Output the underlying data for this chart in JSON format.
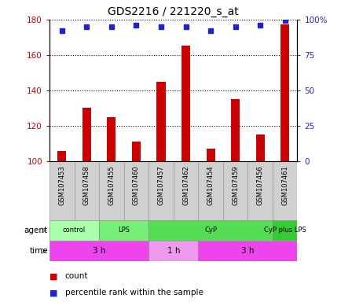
{
  "title": "GDS2216 / 221220_s_at",
  "samples": [
    "GSM107453",
    "GSM107458",
    "GSM107455",
    "GSM107460",
    "GSM107457",
    "GSM107462",
    "GSM107454",
    "GSM107459",
    "GSM107456",
    "GSM107461"
  ],
  "counts": [
    106,
    130,
    125,
    111,
    145,
    165,
    107,
    135,
    115,
    177
  ],
  "percentiles": [
    92,
    95,
    95,
    96,
    95,
    95,
    92,
    95,
    96,
    99
  ],
  "ylim_left": [
    100,
    180
  ],
  "ylim_right": [
    0,
    100
  ],
  "yticks_left": [
    100,
    120,
    140,
    160,
    180
  ],
  "yticks_right": [
    0,
    25,
    50,
    75,
    100
  ],
  "ytick_labels_right": [
    "0",
    "25",
    "50",
    "75",
    "100%"
  ],
  "bar_color": "#cc0000",
  "dot_color": "#2222cc",
  "agent_groups": [
    {
      "label": "control",
      "start": 0,
      "end": 2,
      "color": "#aaffaa"
    },
    {
      "label": "LPS",
      "start": 2,
      "end": 4,
      "color": "#77ee77"
    },
    {
      "label": "CyP",
      "start": 4,
      "end": 9,
      "color": "#55dd55"
    },
    {
      "label": "CyP plus LPS",
      "start": 9,
      "end": 10,
      "color": "#33cc33"
    }
  ],
  "time_groups": [
    {
      "label": "3 h",
      "start": 0,
      "end": 4,
      "color": "#ee44ee"
    },
    {
      "label": "1 h",
      "start": 4,
      "end": 6,
      "color": "#ee99ee"
    },
    {
      "label": "3 h",
      "start": 6,
      "end": 10,
      "color": "#ee44ee"
    }
  ],
  "legend_count_color": "#cc0000",
  "legend_pct_color": "#2222cc",
  "left_tick_color": "#cc0000",
  "right_tick_color": "#2222cc",
  "grid_style": "dotted",
  "bar_width": 0.35,
  "sample_bg_color": "#d0d0d0",
  "sample_edge_color": "#999999"
}
